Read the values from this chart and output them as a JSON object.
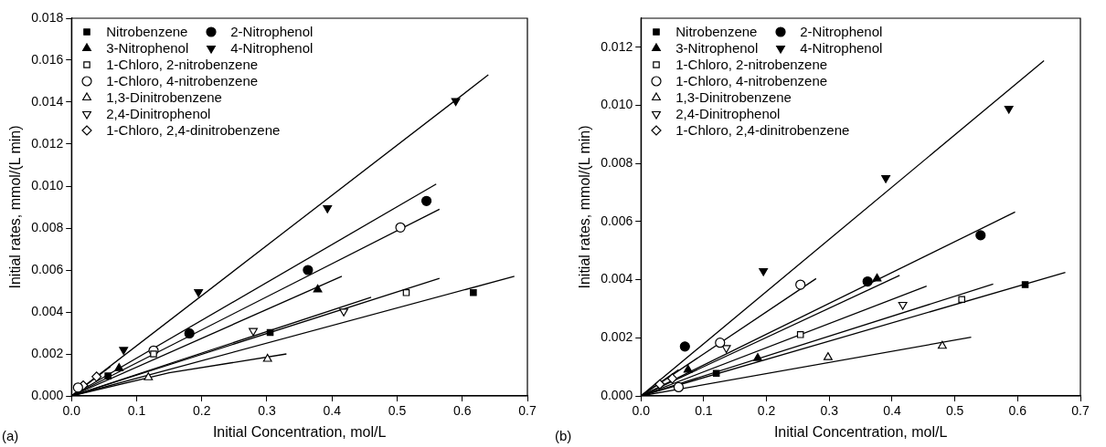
{
  "chart_data": [
    {
      "type": "scatter",
      "xlabel": "Initial Concentration, mol/L",
      "ylabel": "Initial rates, mmol/(L min)",
      "annotations": [
        "(a)"
      ],
      "xlim": [
        0,
        0.7
      ],
      "ylim": [
        0,
        0.018
      ],
      "xticks": [
        {
          "value": 0,
          "label": "0.0"
        },
        {
          "value": 0.1,
          "label": "0.1"
        },
        {
          "value": 0.2,
          "label": "0.2"
        },
        {
          "value": 0.3,
          "label": "0.3"
        },
        {
          "value": 0.4,
          "label": "0.4"
        },
        {
          "value": 0.5,
          "label": "0.5"
        },
        {
          "value": 0.6,
          "label": "0.6"
        },
        {
          "value": 0.7,
          "label": "0.7"
        }
      ],
      "yticks": [
        {
          "value": 0,
          "label": "0.000"
        },
        {
          "value": 0.002,
          "label": "0.002"
        },
        {
          "value": 0.004,
          "label": "0.004"
        },
        {
          "value": 0.006,
          "label": "0.006"
        },
        {
          "value": 0.008,
          "label": "0.008"
        },
        {
          "value": 0.01,
          "label": "0.010"
        },
        {
          "value": 0.012,
          "label": "0.012"
        },
        {
          "value": 0.014,
          "label": "0.014"
        },
        {
          "value": 0.016,
          "label": "0.016"
        },
        {
          "value": 0.018,
          "label": "0.018"
        }
      ],
      "grid": false,
      "legend": "top left",
      "series": [
        {
          "name": "Nitrobenzene",
          "type": "scatter",
          "marker": "square",
          "color": "#000000",
          "x": [
            0.056,
            0.305,
            0.617
          ],
          "values": [
            0.00095,
            0.00302,
            0.00492
          ]
        },
        {
          "name": "2-Nitrophenol",
          "type": "scatter",
          "marker": "circle",
          "color": "#000000",
          "x": [
            0.181,
            0.363,
            0.545
          ],
          "values": [
            0.00298,
            0.006,
            0.00929
          ]
        },
        {
          "name": "3-Nitrophenol",
          "type": "scatter",
          "marker": "triangle",
          "color": "#000000",
          "x": [
            0.073,
            0.378
          ],
          "values": [
            0.00132,
            0.00507
          ]
        },
        {
          "name": "4-Nitrophenol",
          "type": "scatter",
          "marker": "triangle-down",
          "color": "#000000",
          "x": [
            0.08,
            0.195,
            0.393,
            0.59
          ],
          "values": [
            0.0022,
            0.00495,
            0.00895,
            0.01406
          ]
        },
        {
          "name": "1-Chloro, 2-nitrobenzene",
          "type": "scatter",
          "marker": "square-open",
          "color": "#000000",
          "x": [
            0.126,
            0.514
          ],
          "values": [
            0.002,
            0.00492
          ]
        },
        {
          "name": "1-Chloro, 4-nitrobenzene",
          "type": "scatter",
          "marker": "circle-open",
          "color": "#000000",
          "x": [
            0.01,
            0.126,
            0.505
          ],
          "values": [
            0.0004,
            0.00216,
            0.00803
          ]
        },
        {
          "name": "1,3-Dinitrobenzene",
          "type": "scatter",
          "marker": "triangle-open",
          "color": "#000000",
          "x": [
            0.118,
            0.301
          ],
          "values": [
            0.00088,
            0.00176
          ]
        },
        {
          "name": "2,4-Dinitrophenol",
          "type": "scatter",
          "marker": "triangle-down-open",
          "color": "#000000",
          "x": [
            0.279,
            0.418
          ],
          "values": [
            0.0031,
            0.00403
          ]
        },
        {
          "name": "1-Chloro, 2,4-dinitrobenzene",
          "type": "scatter",
          "marker": "diamond-open",
          "color": "#000000",
          "x": [
            0.018,
            0.0385
          ],
          "values": [
            0.0005,
            0.00092
          ]
        },
        {
          "type": "line",
          "marker": "none",
          "color": "#000000",
          "x": [
            0,
            0.68
          ],
          "values": [
            0,
            0.0057
          ]
        },
        {
          "type": "line",
          "marker": "none",
          "color": "#000000",
          "x": [
            0,
            0.56
          ],
          "values": [
            0,
            0.0101
          ]
        },
        {
          "type": "line",
          "marker": "none",
          "color": "#000000",
          "x": [
            0,
            0.415
          ],
          "values": [
            0,
            0.0057
          ]
        },
        {
          "type": "line",
          "marker": "none",
          "color": "#000000",
          "x": [
            0,
            0.64
          ],
          "values": [
            0,
            0.0153
          ]
        },
        {
          "type": "line",
          "marker": "none",
          "color": "#000000",
          "x": [
            0,
            0.565
          ],
          "values": [
            0,
            0.0056
          ]
        },
        {
          "type": "line",
          "marker": "none",
          "color": "#000000",
          "x": [
            0,
            0.565
          ],
          "values": [
            0,
            0.0089
          ]
        },
        {
          "type": "line",
          "marker": "none",
          "color": "#000000",
          "x": [
            0,
            0.15,
            0.33
          ],
          "values": [
            0,
            0.0011,
            0.002
          ]
        },
        {
          "type": "line",
          "marker": "none",
          "color": "#000000",
          "x": [
            0,
            0.46
          ],
          "values": [
            0,
            0.0047
          ]
        },
        {
          "type": "line",
          "marker": "none",
          "color": "#000000",
          "x": [
            0,
            0.06
          ],
          "values": [
            0,
            0.0014
          ]
        }
      ]
    },
    {
      "type": "scatter",
      "xlabel": "Initial Concentration, mol/L",
      "ylabel": "Initial rates, mmol/(L min)",
      "annotations": [
        "(b)"
      ],
      "xlim": [
        0,
        0.7
      ],
      "ylim": [
        0,
        0.013
      ],
      "xticks": [
        {
          "value": 0,
          "label": "0.0"
        },
        {
          "value": 0.1,
          "label": "0.1"
        },
        {
          "value": 0.2,
          "label": "0.2"
        },
        {
          "value": 0.3,
          "label": "0.3"
        },
        {
          "value": 0.4,
          "label": "0.4"
        },
        {
          "value": 0.5,
          "label": "0.5"
        },
        {
          "value": 0.6,
          "label": "0.6"
        },
        {
          "value": 0.7,
          "label": "0.7"
        }
      ],
      "yticks": [
        {
          "value": 0,
          "label": "0.000"
        },
        {
          "value": 0.002,
          "label": "0.002"
        },
        {
          "value": 0.004,
          "label": "0.004"
        },
        {
          "value": 0.006,
          "label": "0.006"
        },
        {
          "value": 0.008,
          "label": "0.008"
        },
        {
          "value": 0.01,
          "label": "0.010"
        },
        {
          "value": 0.012,
          "label": "0.012"
        }
      ],
      "grid": false,
      "legend": "top left",
      "series": [
        {
          "name": "Nitrobenzene",
          "type": "scatter",
          "marker": "square",
          "color": "#000000",
          "x": [
            0.12,
            0.612
          ],
          "values": [
            0.00078,
            0.00383
          ]
        },
        {
          "name": "2-Nitrophenol",
          "type": "scatter",
          "marker": "circle",
          "color": "#000000",
          "x": [
            0.07,
            0.361,
            0.541
          ],
          "values": [
            0.0017,
            0.00394,
            0.00553
          ]
        },
        {
          "name": "3-Nitrophenol",
          "type": "scatter",
          "marker": "triangle",
          "color": "#000000",
          "x": [
            0.075,
            0.186,
            0.376
          ],
          "values": [
            0.0009,
            0.0013,
            0.00404
          ]
        },
        {
          "name": "4-Nitrophenol",
          "type": "scatter",
          "marker": "triangle-down",
          "color": "#000000",
          "x": [
            0.195,
            0.39,
            0.586
          ],
          "values": [
            0.0043,
            0.0075,
            0.00989
          ]
        },
        {
          "name": "1-Chloro, 2-nitrobenzene",
          "type": "scatter",
          "marker": "square-open",
          "color": "#000000",
          "x": [
            0.254,
            0.511
          ],
          "values": [
            0.00211,
            0.00332
          ]
        },
        {
          "name": "1-Chloro, 4-nitrobenzene",
          "type": "scatter",
          "marker": "circle-open",
          "color": "#000000",
          "x": [
            0.06,
            0.126,
            0.254
          ],
          "values": [
            0.0003,
            0.00183,
            0.00383
          ]
        },
        {
          "name": "1,3-Dinitrobenzene",
          "type": "scatter",
          "marker": "triangle-open",
          "color": "#000000",
          "x": [
            0.298,
            0.48
          ],
          "values": [
            0.00133,
            0.00172
          ]
        },
        {
          "name": "2,4-Dinitrophenol",
          "type": "scatter",
          "marker": "triangle-down-open",
          "color": "#000000",
          "x": [
            0.136,
            0.417
          ],
          "values": [
            0.00165,
            0.00314
          ]
        },
        {
          "name": "1-Chloro, 2,4-dinitrobenzene",
          "type": "scatter",
          "marker": "diamond-open",
          "color": "#000000",
          "x": [
            0.03,
            0.05
          ],
          "values": [
            0.0004,
            0.0006
          ]
        },
        {
          "type": "line",
          "marker": "none",
          "color": "#000000",
          "x": [
            0,
            0.642
          ],
          "values": [
            0,
            0.01154
          ]
        },
        {
          "type": "line",
          "marker": "none",
          "color": "#000000",
          "x": [
            0,
            0.596
          ],
          "values": [
            0,
            0.00633
          ]
        },
        {
          "type": "line",
          "marker": "none",
          "color": "#000000",
          "x": [
            0,
            0.412
          ],
          "values": [
            0,
            0.00415
          ]
        },
        {
          "type": "line",
          "marker": "none",
          "color": "#000000",
          "x": [
            0,
            0.279
          ],
          "values": [
            0,
            0.00404
          ]
        },
        {
          "type": "line",
          "marker": "none",
          "color": "#000000",
          "x": [
            0,
            0.455
          ],
          "values": [
            0,
            0.00378
          ]
        },
        {
          "type": "line",
          "marker": "none",
          "color": "#000000",
          "x": [
            0,
            0.561
          ],
          "values": [
            0,
            0.00385
          ]
        },
        {
          "type": "line",
          "marker": "none",
          "color": "#000000",
          "x": [
            0,
            0.676
          ],
          "values": [
            0,
            0.00425
          ]
        },
        {
          "type": "line",
          "marker": "none",
          "color": "#000000",
          "x": [
            0,
            0.526
          ],
          "values": [
            0,
            0.00202
          ]
        },
        {
          "type": "line",
          "marker": "none",
          "color": "#000000",
          "x": [
            0,
            0.06
          ],
          "values": [
            0,
            0.0009
          ]
        }
      ]
    }
  ]
}
